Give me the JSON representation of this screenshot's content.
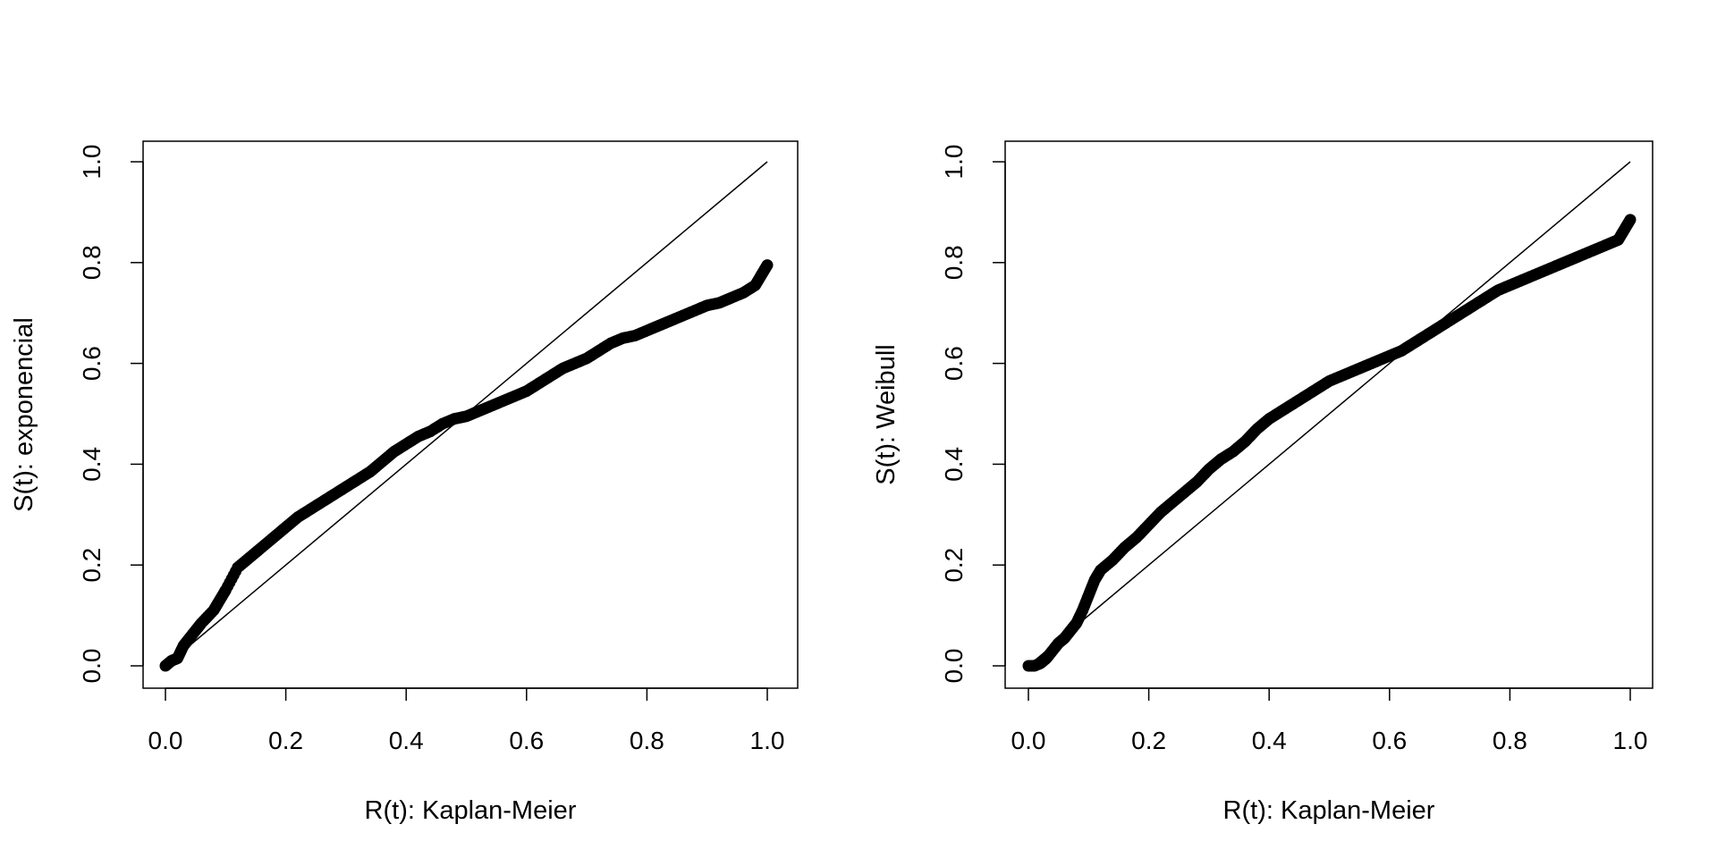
{
  "chart_data": [
    {
      "type": "scatter",
      "xlabel": "R(t): Kaplan-Meier",
      "ylabel": "S(t): exponencial",
      "xlim": [
        0,
        1
      ],
      "ylim": [
        0,
        1
      ],
      "xticks": [
        "0.0",
        "0.2",
        "0.4",
        "0.6",
        "0.8",
        "1.0"
      ],
      "yticks": [
        "0.0",
        "0.2",
        "0.4",
        "0.6",
        "0.8",
        "1.0"
      ],
      "reference_line": {
        "x": [
          0,
          1
        ],
        "y": [
          0,
          1
        ]
      },
      "series": [
        {
          "x": [
            0.0,
            0.01,
            0.02,
            0.03,
            0.04,
            0.05,
            0.06,
            0.08,
            0.09,
            0.1,
            0.12,
            0.14,
            0.16,
            0.18,
            0.2,
            0.22,
            0.24,
            0.26,
            0.28,
            0.3,
            0.32,
            0.34,
            0.36,
            0.38,
            0.4,
            0.42,
            0.44,
            0.46,
            0.48,
            0.5,
            0.52,
            0.54,
            0.56,
            0.58,
            0.6,
            0.62,
            0.64,
            0.66,
            0.68,
            0.7,
            0.72,
            0.74,
            0.76,
            0.78,
            0.8,
            0.82,
            0.84,
            0.86,
            0.88,
            0.9,
            0.92,
            0.94,
            0.96,
            0.98,
            0.99,
            1.0
          ],
          "y": [
            0.0,
            0.01,
            0.015,
            0.04,
            0.055,
            0.07,
            0.085,
            0.11,
            0.13,
            0.15,
            0.195,
            0.215,
            0.235,
            0.255,
            0.275,
            0.295,
            0.31,
            0.325,
            0.34,
            0.355,
            0.37,
            0.385,
            0.405,
            0.425,
            0.44,
            0.455,
            0.465,
            0.48,
            0.49,
            0.495,
            0.505,
            0.515,
            0.525,
            0.535,
            0.545,
            0.56,
            0.575,
            0.59,
            0.6,
            0.61,
            0.625,
            0.64,
            0.65,
            0.655,
            0.665,
            0.675,
            0.685,
            0.695,
            0.705,
            0.715,
            0.72,
            0.73,
            0.74,
            0.755,
            0.775,
            0.795
          ]
        }
      ]
    },
    {
      "type": "scatter",
      "xlabel": "R(t): Kaplan-Meier",
      "ylabel": "S(t): Weibull",
      "xlim": [
        0,
        1
      ],
      "ylim": [
        0,
        1
      ],
      "xticks": [
        "0.0",
        "0.2",
        "0.4",
        "0.6",
        "0.8",
        "1.0"
      ],
      "yticks": [
        "0.0",
        "0.2",
        "0.4",
        "0.6",
        "0.8",
        "1.0"
      ],
      "reference_line": {
        "x": [
          0,
          1
        ],
        "y": [
          0,
          1
        ]
      },
      "series": [
        {
          "x": [
            0.0,
            0.01,
            0.02,
            0.03,
            0.04,
            0.05,
            0.06,
            0.07,
            0.08,
            0.09,
            0.1,
            0.11,
            0.12,
            0.14,
            0.16,
            0.18,
            0.2,
            0.22,
            0.24,
            0.26,
            0.28,
            0.3,
            0.32,
            0.34,
            0.36,
            0.38,
            0.4,
            0.42,
            0.44,
            0.46,
            0.48,
            0.5,
            0.52,
            0.54,
            0.56,
            0.58,
            0.6,
            0.62,
            0.64,
            0.66,
            0.68,
            0.7,
            0.72,
            0.74,
            0.76,
            0.78,
            0.8,
            0.82,
            0.84,
            0.86,
            0.88,
            0.9,
            0.92,
            0.94,
            0.96,
            0.98,
            0.99,
            1.0
          ],
          "y": [
            0.0,
            0.0,
            0.005,
            0.015,
            0.03,
            0.045,
            0.055,
            0.07,
            0.085,
            0.11,
            0.14,
            0.17,
            0.19,
            0.21,
            0.235,
            0.255,
            0.28,
            0.305,
            0.325,
            0.345,
            0.365,
            0.39,
            0.41,
            0.425,
            0.445,
            0.47,
            0.49,
            0.505,
            0.52,
            0.535,
            0.55,
            0.565,
            0.575,
            0.585,
            0.595,
            0.605,
            0.615,
            0.625,
            0.64,
            0.655,
            0.67,
            0.685,
            0.7,
            0.715,
            0.73,
            0.745,
            0.755,
            0.765,
            0.775,
            0.785,
            0.795,
            0.805,
            0.815,
            0.825,
            0.835,
            0.845,
            0.865,
            0.885
          ]
        }
      ]
    }
  ]
}
